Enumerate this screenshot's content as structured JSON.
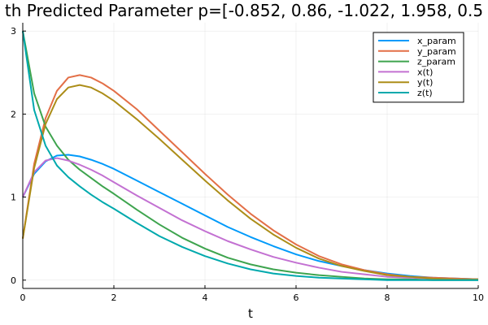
{
  "chart_data": {
    "type": "line",
    "title": "th Predicted Parameter p=[-0.852, 0.86, -1.022, 1.958, 0.5",
    "xlabel": "t",
    "ylabel": "",
    "xlim": [
      0,
      10
    ],
    "ylim": [
      -0.1,
      3.1
    ],
    "xticks": [
      0,
      2,
      4,
      6,
      8,
      10
    ],
    "yticks": [
      0,
      1,
      2,
      3
    ],
    "grid": true,
    "legend_position": "top-right",
    "x": [
      0,
      0.25,
      0.5,
      0.75,
      1,
      1.25,
      1.5,
      1.75,
      2,
      2.5,
      3,
      3.5,
      4,
      4.5,
      5,
      5.5,
      6,
      6.5,
      7,
      7.5,
      8,
      8.5,
      9,
      9.5,
      10
    ],
    "series": [
      {
        "name": "x_param",
        "color": "#009AFA",
        "values": [
          1.0,
          1.28,
          1.43,
          1.5,
          1.51,
          1.49,
          1.45,
          1.4,
          1.34,
          1.2,
          1.06,
          0.92,
          0.78,
          0.64,
          0.52,
          0.41,
          0.31,
          0.23,
          0.17,
          0.12,
          0.08,
          0.05,
          0.03,
          0.02,
          0.01
        ]
      },
      {
        "name": "y_param",
        "color": "#E36F47",
        "values": [
          0.5,
          1.4,
          1.95,
          2.28,
          2.44,
          2.47,
          2.44,
          2.37,
          2.28,
          2.06,
          1.8,
          1.54,
          1.28,
          1.03,
          0.8,
          0.6,
          0.43,
          0.29,
          0.19,
          0.12,
          0.07,
          0.04,
          0.03,
          0.02,
          0.01
        ]
      },
      {
        "name": "z_param",
        "color": "#3EA44E",
        "values": [
          3.0,
          2.25,
          1.85,
          1.62,
          1.45,
          1.33,
          1.23,
          1.13,
          1.04,
          0.85,
          0.67,
          0.51,
          0.38,
          0.27,
          0.19,
          0.13,
          0.09,
          0.06,
          0.04,
          0.02,
          0.01,
          0.01,
          0.0,
          0.0,
          0.0
        ]
      },
      {
        "name": "x(t)",
        "color": "#C371D2",
        "values": [
          1.0,
          1.3,
          1.44,
          1.47,
          1.44,
          1.39,
          1.33,
          1.26,
          1.18,
          1.02,
          0.87,
          0.72,
          0.59,
          0.47,
          0.37,
          0.28,
          0.21,
          0.15,
          0.1,
          0.07,
          0.04,
          0.03,
          0.02,
          0.01,
          0.01
        ]
      },
      {
        "name": "y(t)",
        "color": "#AC8D18",
        "values": [
          0.5,
          1.35,
          1.88,
          2.18,
          2.32,
          2.35,
          2.32,
          2.25,
          2.16,
          1.94,
          1.7,
          1.45,
          1.2,
          0.96,
          0.74,
          0.55,
          0.39,
          0.26,
          0.17,
          0.11,
          0.06,
          0.04,
          0.02,
          0.01,
          0.01
        ]
      },
      {
        "name": "z(t)",
        "color": "#00A9AD",
        "values": [
          3.0,
          2.05,
          1.62,
          1.38,
          1.24,
          1.13,
          1.03,
          0.94,
          0.86,
          0.69,
          0.53,
          0.4,
          0.29,
          0.2,
          0.13,
          0.08,
          0.05,
          0.03,
          0.02,
          0.01,
          0.0,
          0.0,
          0.0,
          0.0,
          0.0
        ]
      }
    ]
  }
}
